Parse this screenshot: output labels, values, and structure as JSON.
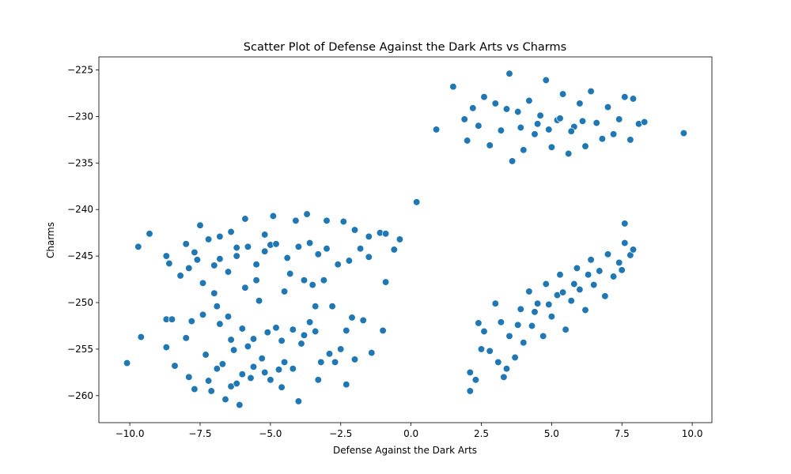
{
  "chart_data": {
    "type": "scatter",
    "title": "Scatter Plot of Defense Against the Dark Arts vs Charms",
    "xlabel": "Defense Against the Dark Arts",
    "ylabel": "Charms",
    "xlim": [
      -11.1,
      10.7
    ],
    "ylim": [
      -262.9,
      -223.6
    ],
    "x_ticks": [
      -10.0,
      -7.5,
      -5.0,
      -2.5,
      0.0,
      2.5,
      5.0,
      7.5,
      10.0
    ],
    "x_tick_labels": [
      "−10.0",
      "−7.5",
      "−5.0",
      "−2.5",
      "0.0",
      "2.5",
      "5.0",
      "7.5",
      "10.0"
    ],
    "y_ticks": [
      -260,
      -255,
      -250,
      -245,
      -240,
      -235,
      -230,
      -225
    ],
    "y_tick_labels": [
      "−260",
      "−255",
      "−250",
      "−245",
      "−240",
      "−235",
      "−230",
      "−225"
    ],
    "grid": false,
    "marker_color": "#1f77b4",
    "marker_edge_color": "#ffffff",
    "series": [
      {
        "points": [
          [
            -10.1,
            -256.5
          ],
          [
            -9.7,
            -244.0
          ],
          [
            -9.6,
            -253.7
          ],
          [
            -9.3,
            -242.6
          ],
          [
            -8.7,
            -245.0
          ],
          [
            -8.6,
            -245.8
          ],
          [
            -8.7,
            -251.8
          ],
          [
            -8.7,
            -254.8
          ],
          [
            -8.5,
            -251.8
          ],
          [
            -8.4,
            -256.8
          ],
          [
            -8.2,
            -247.1
          ],
          [
            -8.0,
            -243.7
          ],
          [
            -8.0,
            -253.8
          ],
          [
            -7.9,
            -246.3
          ],
          [
            -7.9,
            -258.0
          ],
          [
            -7.8,
            -252.0
          ],
          [
            -7.7,
            -244.6
          ],
          [
            -7.7,
            -259.3
          ],
          [
            -7.6,
            -245.4
          ],
          [
            -7.5,
            -241.7
          ],
          [
            -7.4,
            -247.9
          ],
          [
            -7.4,
            -251.3
          ],
          [
            -7.3,
            -255.6
          ],
          [
            -7.2,
            -243.2
          ],
          [
            -7.2,
            -258.4
          ],
          [
            -7.1,
            -259.5
          ],
          [
            -7.0,
            -249.0
          ],
          [
            -7.0,
            -246.0
          ],
          [
            -6.9,
            -250.4
          ],
          [
            -6.9,
            -257.1
          ],
          [
            -6.8,
            -252.3
          ],
          [
            -6.8,
            -242.9
          ],
          [
            -6.7,
            -256.6
          ],
          [
            -6.6,
            -260.4
          ],
          [
            -6.5,
            -251.5
          ],
          [
            -6.4,
            -242.4
          ],
          [
            -6.4,
            -259.0
          ],
          [
            -6.3,
            -255.1
          ],
          [
            -6.2,
            -258.7
          ],
          [
            -6.2,
            -244.1
          ],
          [
            -6.1,
            -261.0
          ],
          [
            -6.0,
            -257.7
          ],
          [
            -5.9,
            -241.0
          ],
          [
            -5.9,
            -248.4
          ],
          [
            -5.8,
            -254.7
          ],
          [
            -5.7,
            -258.1
          ],
          [
            -5.6,
            -256.9
          ],
          [
            -5.5,
            -247.6
          ],
          [
            -5.4,
            -249.8
          ],
          [
            -5.3,
            -256.0
          ],
          [
            -5.2,
            -242.7
          ],
          [
            -5.2,
            -257.5
          ],
          [
            -5.0,
            -243.8
          ],
          [
            -5.0,
            -258.3
          ],
          [
            -4.9,
            -240.7
          ],
          [
            -4.8,
            -252.7
          ],
          [
            -4.7,
            -257.2
          ],
          [
            -4.6,
            -259.1
          ],
          [
            -4.5,
            -248.8
          ],
          [
            -4.5,
            -256.4
          ],
          [
            -4.3,
            -246.9
          ],
          [
            -4.2,
            -257.1
          ],
          [
            -4.1,
            -241.2
          ],
          [
            -4.0,
            -260.6
          ],
          [
            -3.9,
            -254.4
          ],
          [
            -3.8,
            -247.6
          ],
          [
            -3.7,
            -240.5
          ],
          [
            -3.6,
            -252.1
          ],
          [
            -3.5,
            -248.1
          ],
          [
            -3.4,
            -250.4
          ],
          [
            -3.3,
            -258.3
          ],
          [
            -3.2,
            -256.4
          ],
          [
            -3.1,
            -247.6
          ],
          [
            -3.0,
            -241.2
          ],
          [
            -3.0,
            -244.2
          ],
          [
            -2.9,
            -255.5
          ],
          [
            -2.8,
            -250.4
          ],
          [
            -2.7,
            -256.4
          ],
          [
            -2.6,
            -245.9
          ],
          [
            -2.5,
            -255.0
          ],
          [
            -2.4,
            -241.3
          ],
          [
            -2.3,
            -253.0
          ],
          [
            -2.3,
            -258.8
          ],
          [
            -2.2,
            -245.5
          ],
          [
            -2.1,
            -251.6
          ],
          [
            -2.0,
            -242.2
          ],
          [
            -2.0,
            -256.1
          ],
          [
            -1.8,
            -244.2
          ],
          [
            -1.7,
            -251.9
          ],
          [
            -1.5,
            -242.9
          ],
          [
            -1.5,
            -245.1
          ],
          [
            -1.4,
            -255.4
          ],
          [
            -1.1,
            -242.5
          ],
          [
            -1.0,
            -253.0
          ],
          [
            -0.9,
            -247.8
          ],
          [
            -0.9,
            -242.6
          ],
          [
            -0.6,
            -244.3
          ],
          [
            -0.4,
            -243.2
          ],
          [
            -6.8,
            -245.3
          ],
          [
            -6.5,
            -246.7
          ],
          [
            -6.2,
            -245.0
          ],
          [
            -5.8,
            -244.0
          ],
          [
            -5.5,
            -245.9
          ],
          [
            -5.2,
            -244.5
          ],
          [
            -4.8,
            -243.7
          ],
          [
            -4.4,
            -245.2
          ],
          [
            -4.0,
            -244.0
          ],
          [
            -3.6,
            -243.6
          ],
          [
            -3.3,
            -244.8
          ],
          [
            -6.0,
            -252.8
          ],
          [
            -5.6,
            -253.9
          ],
          [
            -5.1,
            -253.2
          ],
          [
            -4.6,
            -254.1
          ],
          [
            -4.2,
            -252.9
          ],
          [
            -3.8,
            -253.5
          ],
          [
            -6.4,
            -254.0
          ],
          [
            -3.4,
            -253.1
          ],
          [
            0.2,
            -239.2
          ],
          [
            0.9,
            -231.4
          ],
          [
            1.5,
            -226.8
          ],
          [
            1.9,
            -230.3
          ],
          [
            2.0,
            -232.6
          ],
          [
            2.2,
            -229.1
          ],
          [
            2.4,
            -231.0
          ],
          [
            2.6,
            -227.9
          ],
          [
            2.8,
            -233.1
          ],
          [
            3.0,
            -228.6
          ],
          [
            3.2,
            -231.5
          ],
          [
            3.4,
            -229.2
          ],
          [
            3.5,
            -225.4
          ],
          [
            3.6,
            -234.8
          ],
          [
            3.8,
            -229.5
          ],
          [
            4.0,
            -233.6
          ],
          [
            4.2,
            -228.3
          ],
          [
            4.4,
            -231.9
          ],
          [
            4.6,
            -229.9
          ],
          [
            4.8,
            -226.1
          ],
          [
            5.0,
            -233.3
          ],
          [
            5.2,
            -230.4
          ],
          [
            5.4,
            -227.6
          ],
          [
            5.6,
            -234.0
          ],
          [
            5.8,
            -231.1
          ],
          [
            6.0,
            -228.6
          ],
          [
            6.2,
            -233.2
          ],
          [
            6.4,
            -227.3
          ],
          [
            6.6,
            -230.7
          ],
          [
            6.8,
            -232.4
          ],
          [
            7.0,
            -229.0
          ],
          [
            7.2,
            -231.9
          ],
          [
            7.4,
            -230.3
          ],
          [
            7.6,
            -227.9
          ],
          [
            7.8,
            -232.5
          ],
          [
            7.9,
            -228.1
          ],
          [
            8.1,
            -230.8
          ],
          [
            8.3,
            -230.6
          ],
          [
            9.7,
            -231.8
          ],
          [
            4.5,
            -230.8
          ],
          [
            4.9,
            -231.4
          ],
          [
            5.3,
            -230.2
          ],
          [
            5.7,
            -231.6
          ],
          [
            6.1,
            -230.5
          ],
          [
            3.9,
            -231.2
          ],
          [
            2.1,
            -259.5
          ],
          [
            2.1,
            -257.5
          ],
          [
            2.3,
            -258.3
          ],
          [
            2.4,
            -252.2
          ],
          [
            2.5,
            -255.0
          ],
          [
            2.6,
            -253.1
          ],
          [
            2.8,
            -255.2
          ],
          [
            3.0,
            -250.1
          ],
          [
            3.1,
            -256.4
          ],
          [
            3.2,
            -252.1
          ],
          [
            3.4,
            -257.1
          ],
          [
            3.3,
            -258.0
          ],
          [
            3.5,
            -253.6
          ],
          [
            3.7,
            -255.9
          ],
          [
            3.9,
            -250.7
          ],
          [
            4.0,
            -254.3
          ],
          [
            4.2,
            -248.8
          ],
          [
            4.3,
            -252.5
          ],
          [
            4.5,
            -250.1
          ],
          [
            4.7,
            -253.6
          ],
          [
            4.8,
            -248.0
          ],
          [
            5.0,
            -251.5
          ],
          [
            5.2,
            -249.2
          ],
          [
            5.3,
            -247.0
          ],
          [
            5.5,
            -252.9
          ],
          [
            5.7,
            -249.8
          ],
          [
            5.9,
            -246.3
          ],
          [
            6.0,
            -248.6
          ],
          [
            6.2,
            -250.8
          ],
          [
            6.4,
            -245.4
          ],
          [
            6.5,
            -248.1
          ],
          [
            6.7,
            -246.6
          ],
          [
            6.9,
            -249.3
          ],
          [
            7.0,
            -244.8
          ],
          [
            7.2,
            -247.2
          ],
          [
            7.4,
            -245.7
          ],
          [
            7.5,
            -246.5
          ],
          [
            7.6,
            -243.6
          ],
          [
            7.6,
            -241.5
          ],
          [
            7.8,
            -244.9
          ],
          [
            7.9,
            -244.3
          ],
          [
            4.4,
            -251.0
          ],
          [
            4.9,
            -250.2
          ],
          [
            5.4,
            -248.9
          ],
          [
            5.8,
            -248.0
          ],
          [
            6.3,
            -247.0
          ],
          [
            3.8,
            -252.4
          ]
        ]
      }
    ]
  }
}
